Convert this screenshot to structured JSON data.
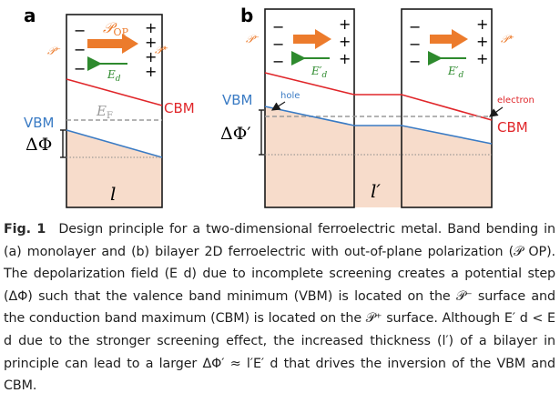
{
  "panel_a": {
    "letter": "a",
    "minus_signs": [
      "−",
      "−",
      "−"
    ],
    "plus_signs": [
      "+",
      "+",
      "+",
      "+"
    ],
    "p_op_label": "𝒫",
    "p_op_sub": "OP",
    "p_minus_label": "𝒫⁻",
    "p_plus_label": "𝒫⁺",
    "field_label": "E",
    "field_sub": "d",
    "fermi_label": "E",
    "fermi_sub": "F",
    "cbm_label": "CBM",
    "vbm_label": "VBM",
    "delta_phi_label": "ΔΦ",
    "length_label": "l"
  },
  "panel_b": {
    "letter": "b",
    "minus_signs_left": [
      "−",
      "−",
      "−"
    ],
    "plus_signs_left": [
      "+",
      "+",
      "+"
    ],
    "minus_signs_right": [
      "−",
      "−",
      "−"
    ],
    "plus_signs_right": [
      "+",
      "+",
      "+"
    ],
    "p_minus_label": "𝒫⁻",
    "p_plus_label": "𝒫⁺",
    "field_label": "E′",
    "field_sub": "d",
    "vbm_label": "VBM",
    "cbm_label": "CBM",
    "hole_label": "hole",
    "electron_label": "electron",
    "delta_phi_label": "ΔΦ′",
    "length_label": "l′"
  },
  "caption": {
    "fig_label": "Fig. 1",
    "text": "Design principle for a two-dimensional ferroelectric metal. Band bending in (a) monolayer and (b) bilayer 2D ferroelectric with out-of-plane polarization (𝒫ₒₚ). The depolarization field (Eₐ) due to incomplete screening creates a potential step (ΔΦ) such that the valence band minimum (VBM) is located on the 𝒫⁻ surface and the conduction band maximum (CBM) is located on the 𝒫⁺ surface. Although E′ₐ < Eₐ due to the stronger screening effect, the increased thickness (l′) of a bilayer in principle can lead to a larger ΔΦ′ ≈ l′E′ₐ that drives the inversion of the VBM and CBM.",
    "text_display": "Design principle for a two-dimensional ferroelectric metal. Band bending in (a) monolayer and (b) bilayer 2D ferroelectric with out-of-plane polarization (𝒫 OP). The depolarization field (E d) due to incomplete screening creates a potential step (ΔΦ) such that the valence band minimum (VBM) is located on the 𝒫⁻ surface and the conduction band maximum (CBM) is located on the 𝒫⁺ surface. Although E′ d < E d due to the stronger screening effect, the increased thickness (l′) of a bilayer in principle can lead to a larger ΔΦ′ ≈ l′E′ d that drives the inversion of the VBM and CBM."
  },
  "colors": {
    "cbm": "#e0262a",
    "vbm": "#3a7bc4",
    "fermi": "#9a9a9a",
    "fill": "#f7dccb",
    "arrow": "#ec7b2c",
    "field_arrow": "#2e8a2e",
    "orange_text": "#ec7b2c"
  }
}
